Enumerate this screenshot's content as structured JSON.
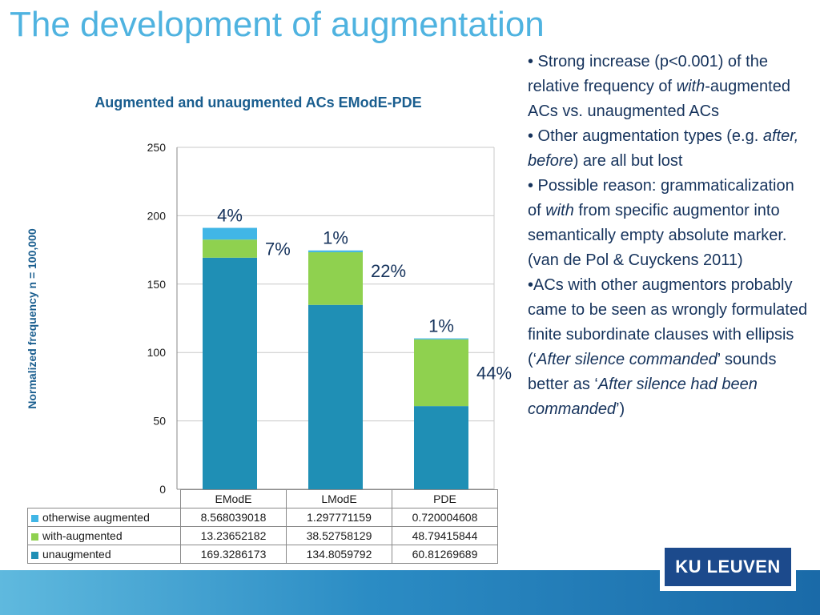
{
  "slide": {
    "title": "The development of augmentation"
  },
  "chart_data": {
    "type": "bar",
    "stacked": true,
    "title": "Augmented and unaugmented ACs EModE-PDE",
    "xlabel": "",
    "ylabel": "Normalized frequency n = 100,000",
    "ylim": [
      0,
      250
    ],
    "yticks": [
      "0",
      "50",
      "100",
      "150",
      "200",
      "250"
    ],
    "grid": true,
    "legend": "table-bottom-left",
    "categories": [
      "EModE",
      "LModE",
      "PDE"
    ],
    "series": [
      {
        "name": "unaugmented",
        "values": [
          169.3286173,
          134.8059792,
          60.81269689
        ],
        "display": [
          "169.3286173",
          "134.8059792",
          "60.81269689"
        ],
        "color": "#1f8fb5"
      },
      {
        "name": "with-augmented",
        "values": [
          13.23652182,
          38.52758129,
          48.79415844
        ],
        "display": [
          "13.23652182",
          "38.52758129",
          "48.79415844"
        ],
        "color": "#8fd14f"
      },
      {
        "name": "otherwise augmented",
        "values": [
          8.568039018,
          1.297771159,
          0.720004608
        ],
        "display": [
          "8.568039018",
          "1.297771159",
          "0.720004608"
        ],
        "color": "#41b6e6"
      }
    ],
    "annotations": [
      {
        "text": "4%",
        "category": "EModE",
        "series": "otherwise augmented"
      },
      {
        "text": "7%",
        "category": "EModE",
        "series": "with-augmented"
      },
      {
        "text": "1%",
        "category": "LModE",
        "series": "otherwise augmented"
      },
      {
        "text": "22%",
        "category": "LModE",
        "series": "with-augmented"
      },
      {
        "text": "1%",
        "category": "PDE",
        "series": "otherwise augmented"
      },
      {
        "text": "44%",
        "category": "PDE",
        "series": "with-augmented"
      }
    ]
  },
  "bullets": [
    {
      "parts": [
        {
          "t": "• Strong increase (p<0.001) of the relative frequency of "
        },
        {
          "t": "with",
          "i": true
        },
        {
          "t": "-augmented ACs vs. unaugmented ACs"
        }
      ]
    },
    {
      "parts": [
        {
          "t": "• Other augmentation types (e.g. "
        },
        {
          "t": "after, before",
          "i": true
        },
        {
          "t": ") are all but lost"
        }
      ]
    },
    {
      "parts": [
        {
          "t": "• Possible reason: grammaticalization of "
        },
        {
          "t": "with",
          "i": true
        },
        {
          "t": " from specific augmentor into semantically empty absolute marker. (van de Pol & Cuyckens 2011)"
        }
      ]
    },
    {
      "parts": [
        {
          "t": "•ACs with other augmentors probably came to be seen as wrongly formulated finite subordinate clauses with ellipsis (‘"
        },
        {
          "t": "After silence commanded",
          "i": true
        },
        {
          "t": "’ sounds better as ‘"
        },
        {
          "t": "After silence had been commanded",
          "i": true
        },
        {
          "t": "’)"
        }
      ]
    }
  ],
  "logo": {
    "text": "KU LEUVEN"
  },
  "colors": {
    "title": "#4fb3e0",
    "chart_text": "#1a5e8f",
    "bullet_text": "#16335c",
    "bar_unaugmented": "#1f8fb5",
    "bar_with": "#8fd14f",
    "bar_otherwise": "#41b6e6",
    "logo_bg": "#1c4a8c"
  }
}
